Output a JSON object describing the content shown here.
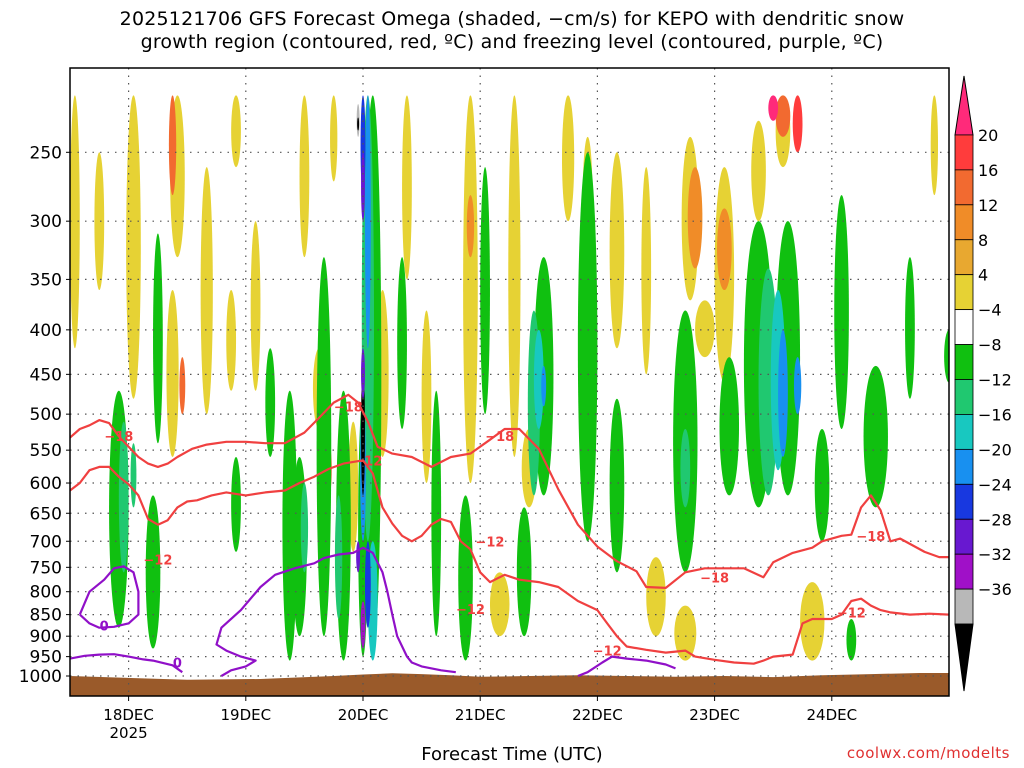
{
  "chart_data": {
    "type": "heatmap",
    "title": "2025121706 GFS Forecast Omega (shaded, −cm/s) for KEPO with dendritic snow",
    "title_line2": "growth region (contoured, red, ºC) and freezing level (contoured, purple, ºC)",
    "xlabel": "Forecast Time (UTC)",
    "ylabel": "",
    "credit": "coolwx.com/modelts",
    "x_ticks": [
      {
        "label": "18DEC",
        "sublabel": "2025",
        "hour": 18
      },
      {
        "label": "19DEC",
        "sublabel": "",
        "hour": 42
      },
      {
        "label": "20DEC",
        "sublabel": "",
        "hour": 66
      },
      {
        "label": "21DEC",
        "sublabel": "",
        "hour": 90
      },
      {
        "label": "22DEC",
        "sublabel": "",
        "hour": 114
      },
      {
        "label": "23DEC",
        "sublabel": "",
        "hour": 138
      },
      {
        "label": "24DEC",
        "sublabel": "",
        "hour": 162
      }
    ],
    "xlim": [
      6,
      186
    ],
    "y_ticks": [
      "250",
      "300",
      "350",
      "400",
      "450",
      "500",
      "550",
      "600",
      "650",
      "700",
      "750",
      "800",
      "850",
      "900",
      "950",
      "1000"
    ],
    "y_values": [
      250,
      300,
      350,
      400,
      450,
      500,
      550,
      600,
      650,
      700,
      750,
      800,
      850,
      900,
      950,
      1000
    ],
    "ylim": [
      200,
      1010
    ],
    "y_scale": "log-pressure",
    "grid": true,
    "colorbar": {
      "labels": [
        "20",
        "16",
        "12",
        "8",
        "4",
        "−4",
        "−8",
        "−12",
        "−16",
        "−20",
        "−24",
        "−28",
        "−32",
        "−36"
      ],
      "colors": [
        "#ff2a7a",
        "#ff3c3c",
        "#f26a30",
        "#f08c28",
        "#e8a830",
        "#e6d234",
        "#ffffff",
        "#10c010",
        "#20c870",
        "#18c8c0",
        "#1890f0",
        "#1838e0",
        "#6818d0",
        "#a010c8",
        "#b8b8b8",
        "#000000"
      ]
    },
    "red_contour_labels": [
      "−18",
      "−12"
    ],
    "purple_contour_labels": [
      "0"
    ],
    "dgz_minus18": [
      [
        6,
        532
      ],
      [
        8,
        520
      ],
      [
        10,
        515
      ],
      [
        12,
        508
      ],
      [
        14,
        512
      ],
      [
        16,
        530
      ],
      [
        18,
        545
      ],
      [
        20,
        560
      ],
      [
        22,
        570
      ],
      [
        24,
        575
      ],
      [
        26,
        570
      ],
      [
        28,
        560
      ],
      [
        31,
        548
      ],
      [
        34,
        542
      ],
      [
        38,
        538
      ],
      [
        42,
        538
      ],
      [
        46,
        540
      ],
      [
        50,
        540
      ],
      [
        54,
        525
      ],
      [
        57,
        505
      ],
      [
        60,
        485
      ],
      [
        63,
        475
      ],
      [
        65,
        485
      ],
      [
        67,
        510
      ],
      [
        69,
        545
      ],
      [
        72,
        555
      ],
      [
        76,
        560
      ],
      [
        80,
        575
      ],
      [
        84,
        560
      ],
      [
        88,
        555
      ],
      [
        92,
        535
      ],
      [
        95,
        520
      ],
      [
        98,
        520
      ],
      [
        102,
        548
      ],
      [
        106,
        610
      ],
      [
        110,
        670
      ],
      [
        114,
        710
      ],
      [
        118,
        738
      ],
      [
        122,
        758
      ],
      [
        124,
        790
      ],
      [
        128,
        792
      ],
      [
        132,
        760
      ],
      [
        136,
        752
      ],
      [
        140,
        752
      ],
      [
        144,
        752
      ],
      [
        148,
        770
      ],
      [
        150,
        740
      ],
      [
        154,
        722
      ],
      [
        158,
        712
      ],
      [
        160,
        700
      ],
      [
        162,
        695
      ],
      [
        164,
        690
      ],
      [
        166,
        688
      ],
      [
        168,
        640
      ],
      [
        170,
        620
      ],
      [
        172,
        645
      ],
      [
        174,
        700
      ],
      [
        176,
        695
      ],
      [
        178,
        705
      ],
      [
        181,
        720
      ],
      [
        184,
        730
      ],
      [
        186,
        730
      ]
    ],
    "dgz_minus12": [
      [
        6,
        612
      ],
      [
        8,
        600
      ],
      [
        10,
        580
      ],
      [
        12,
        575
      ],
      [
        14,
        575
      ],
      [
        16,
        590
      ],
      [
        18,
        602
      ],
      [
        20,
        620
      ],
      [
        22,
        660
      ],
      [
        24,
        670
      ],
      [
        26,
        662
      ],
      [
        28,
        640
      ],
      [
        30,
        630
      ],
      [
        32,
        628
      ],
      [
        35,
        620
      ],
      [
        38,
        615
      ],
      [
        42,
        620
      ],
      [
        46,
        615
      ],
      [
        50,
        612
      ],
      [
        53,
        600
      ],
      [
        56,
        590
      ],
      [
        59,
        578
      ],
      [
        62,
        570
      ],
      [
        66,
        565
      ],
      [
        68,
        585
      ],
      [
        70,
        640
      ],
      [
        72,
        668
      ],
      [
        74,
        690
      ],
      [
        76,
        700
      ],
      [
        78,
        690
      ],
      [
        80,
        670
      ],
      [
        82,
        660
      ],
      [
        84,
        665
      ],
      [
        86,
        700
      ],
      [
        88,
        715
      ],
      [
        90,
        760
      ],
      [
        92,
        780
      ],
      [
        95,
        765
      ],
      [
        98,
        775
      ],
      [
        102,
        780
      ],
      [
        106,
        790
      ],
      [
        110,
        820
      ],
      [
        114,
        840
      ],
      [
        116,
        870
      ],
      [
        118,
        900
      ],
      [
        120,
        925
      ],
      [
        124,
        933
      ],
      [
        128,
        940
      ],
      [
        132,
        935
      ],
      [
        134,
        950
      ],
      [
        138,
        958
      ],
      [
        142,
        965
      ],
      [
        146,
        968
      ],
      [
        148,
        960
      ],
      [
        150,
        950
      ],
      [
        154,
        945
      ],
      [
        156,
        870
      ],
      [
        158,
        860
      ],
      [
        162,
        860
      ],
      [
        164,
        850
      ],
      [
        166,
        820
      ],
      [
        168,
        815
      ],
      [
        170,
        830
      ],
      [
        172,
        840
      ],
      [
        174,
        845
      ],
      [
        178,
        850
      ],
      [
        182,
        848
      ],
      [
        186,
        850
      ]
    ],
    "freezing_level": [
      [
        [
          6,
          955
        ],
        [
          9,
          948
        ],
        [
          12,
          945
        ],
        [
          15,
          944
        ],
        [
          18,
          950
        ],
        [
          21,
          957
        ],
        [
          23,
          960
        ],
        [
          25,
          966
        ],
        [
          27,
          972
        ],
        [
          29,
          990
        ]
      ],
      [
        [
          8,
          850
        ],
        [
          10,
          800
        ],
        [
          13,
          775
        ],
        [
          15,
          752
        ],
        [
          17,
          748
        ],
        [
          19,
          760
        ],
        [
          20,
          800
        ],
        [
          20,
          850
        ],
        [
          18,
          870
        ],
        [
          15,
          878
        ],
        [
          12,
          880
        ],
        [
          10,
          870
        ],
        [
          8,
          850
        ]
      ],
      [
        [
          37,
          1000
        ],
        [
          39,
          985
        ],
        [
          42,
          975
        ],
        [
          44,
          960
        ],
        [
          41,
          950
        ],
        [
          38,
          935
        ],
        [
          36,
          920
        ],
        [
          37,
          880
        ],
        [
          41,
          840
        ],
        [
          45,
          790
        ],
        [
          48,
          765
        ],
        [
          52,
          752
        ],
        [
          56,
          742
        ],
        [
          58,
          732
        ],
        [
          61,
          725
        ],
        [
          64,
          722
        ],
        [
          66,
          712
        ],
        [
          68,
          722
        ],
        [
          70,
          760
        ],
        [
          71,
          800
        ],
        [
          72,
          850
        ],
        [
          73,
          900
        ],
        [
          75,
          950
        ],
        [
          76,
          965
        ],
        [
          78,
          975
        ],
        [
          82,
          985
        ],
        [
          85,
          990
        ]
      ],
      [
        [
          110,
          1000
        ],
        [
          112,
          990
        ],
        [
          115,
          965
        ],
        [
          117,
          950
        ],
        [
          120,
          955
        ],
        [
          124,
          960
        ],
        [
          128,
          970
        ],
        [
          130,
          980
        ]
      ]
    ]
  }
}
